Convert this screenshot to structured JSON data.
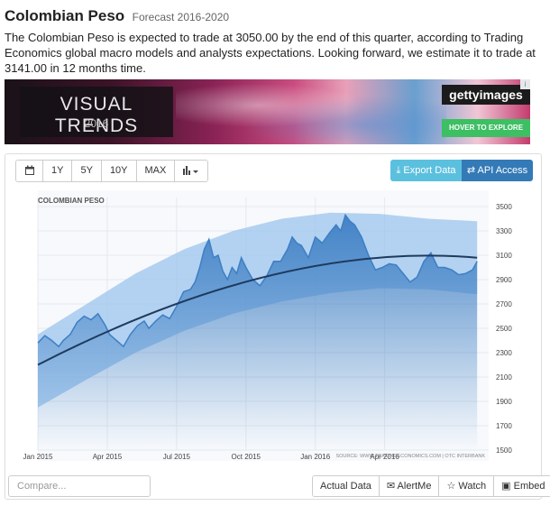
{
  "header": {
    "title": "Colombian Peso",
    "subtitle": "Forecast 2016-2020",
    "description": "The Colombian Peso is expected to trade at 3050.00 by the end of this quarter, according to Trading Economics global macro models and analysts expectations. Looking forward, we estimate it to trade at 3141.00 in 12 months time."
  },
  "banner": {
    "title": "VISUAL TRENDS",
    "year": "2016",
    "brand": "gettyimages",
    "badge": "i",
    "cta": "HOVER TO EXPLORE"
  },
  "toolbar": {
    "calendar_icon": "calendar-icon",
    "ranges": [
      "1Y",
      "5Y",
      "10Y",
      "MAX"
    ],
    "chart_type_icon": "bar-chart-icon",
    "export_label": "Export Data",
    "api_label": "API Access"
  },
  "footer": {
    "compare_placeholder": "Compare...",
    "buttons": [
      "Actual Data",
      "AlertMe",
      "Watch",
      "Embed"
    ]
  },
  "colors": {
    "line": "#3e7fc4",
    "band": "#7fb3e8",
    "trend": "#1e3a5f",
    "export": "#5bc0de",
    "api": "#337ab7"
  },
  "chart_data": {
    "type": "area",
    "title": "COLOMBIAN PESO",
    "source": "SOURCE: WWW.TRADINGECONOMICS.COM | OTC INTERBANK",
    "ylim": [
      1500,
      3500
    ],
    "yticks": [
      1500,
      1700,
      1900,
      2100,
      2300,
      2500,
      2700,
      2900,
      3100,
      3300,
      3500
    ],
    "xticks": [
      "Jan 2015",
      "Apr 2015",
      "Jul 2015",
      "Oct 2015",
      "Jan 2016",
      "Apr 2016"
    ],
    "xtick_month": [
      0,
      3,
      6,
      9,
      12,
      15
    ],
    "xlim_month": [
      0,
      19.5
    ],
    "series": [
      {
        "month": [
          0,
          0.3,
          0.6,
          0.9,
          1.1,
          1.4,
          1.7,
          2.0,
          2.3,
          2.6,
          2.9,
          3.1,
          3.4,
          3.7,
          4.0,
          4.3,
          4.6,
          4.8,
          5.1,
          5.4,
          5.7,
          6.0,
          6.3,
          6.6,
          6.8,
          7.0,
          7.2,
          7.4,
          7.6,
          7.8,
          8.0,
          8.2,
          8.4,
          8.6,
          8.8,
          9.0,
          9.3,
          9.6,
          9.9,
          10.2,
          10.5,
          10.8,
          11.0,
          11.2,
          11.4,
          11.7,
          12.0,
          12.3,
          12.6,
          12.9,
          13.1,
          13.3,
          13.5,
          13.7,
          14.0,
          14.3,
          14.6,
          14.9,
          15.2,
          15.5,
          15.8,
          16.1,
          16.4,
          16.7,
          17.0,
          17.3,
          17.6,
          17.9,
          18.2,
          18.5,
          18.8,
          19.0
        ],
        "values": [
          2380,
          2440,
          2400,
          2350,
          2400,
          2450,
          2550,
          2600,
          2570,
          2620,
          2530,
          2450,
          2400,
          2350,
          2450,
          2520,
          2560,
          2500,
          2560,
          2610,
          2580,
          2680,
          2800,
          2820,
          2880,
          3000,
          3150,
          3230,
          3080,
          3100,
          2970,
          2900,
          3000,
          2950,
          3080,
          3000,
          2900,
          2850,
          2930,
          3050,
          3050,
          3150,
          3250,
          3200,
          3180,
          3080,
          3250,
          3200,
          3280,
          3350,
          3300,
          3430,
          3380,
          3350,
          3250,
          3100,
          2980,
          3000,
          3030,
          3020,
          2950,
          2880,
          2920,
          3050,
          3120,
          3000,
          3000,
          2980,
          2940,
          2950,
          2980,
          3050
        ]
      }
    ],
    "trend_month": [
      0,
      19
    ],
    "trend_values": [
      2200,
      3080
    ],
    "band_upper": [
      2450,
      2700,
      2950,
      3150,
      3300,
      3400,
      3450,
      3440,
      3400,
      3380
    ],
    "band_lower": [
      1850,
      2080,
      2300,
      2480,
      2620,
      2720,
      2790,
      2830,
      2820,
      2780
    ]
  }
}
